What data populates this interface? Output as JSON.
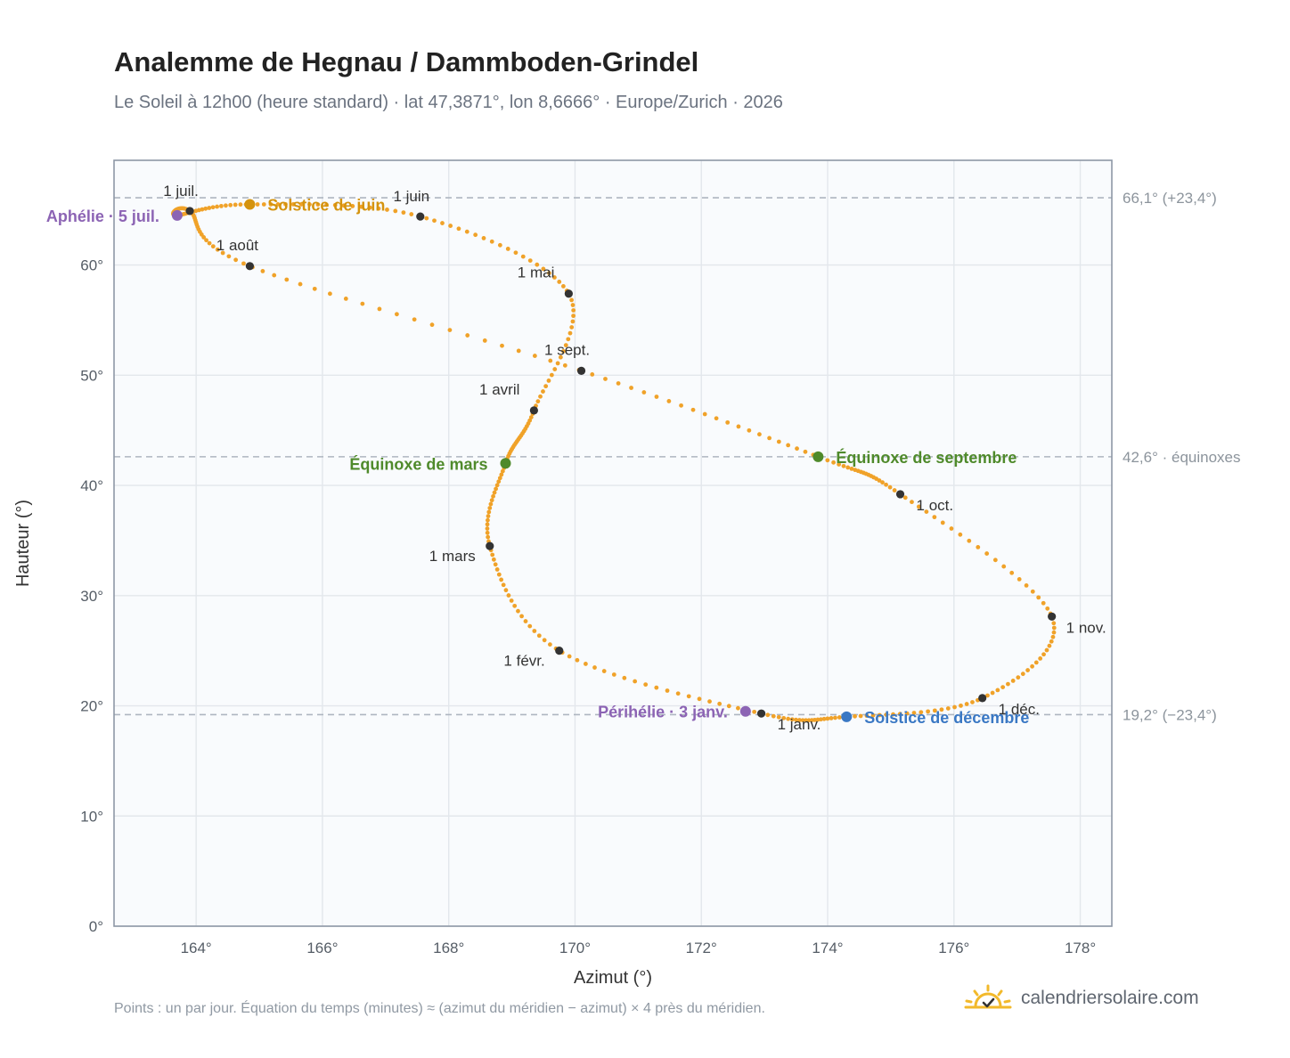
{
  "header": {
    "title": "Analemme de Hegnau / Dammboden-Grindel",
    "subtitle": "Le Soleil à 12h00 (heure standard) · lat 47,3871°, lon 8,6666° · Europe/Zurich · 2026"
  },
  "footer": {
    "note": "Points : un par jour. Équation du temps (minutes) ≈ (azimut du méridien − azimut) × 4 près du méridien.",
    "brand": "calendriersolaire.com"
  },
  "colors": {
    "curve": "#f0a229",
    "month_dot": "#333333",
    "aphelion": "#8c64b4",
    "solstice_june": "#d4930e",
    "equinox": "#4f8a2b",
    "solstice_december": "#3a78c4",
    "grid": "#e3e7ec",
    "plot_bg": "#f9fbfd"
  },
  "chart_data": {
    "type": "scatter",
    "title": "Analemme de Hegnau / Dammboden-Grindel",
    "xlabel": "Azimut (°)",
    "ylabel": "Hauteur (°)",
    "xlim": [
      162.7,
      178.5
    ],
    "ylim": [
      0,
      69.5
    ],
    "x_ticks": [
      {
        "value": 164,
        "label": "164°"
      },
      {
        "value": 166,
        "label": "166°"
      },
      {
        "value": 168,
        "label": "168°"
      },
      {
        "value": 170,
        "label": "170°"
      },
      {
        "value": 172,
        "label": "172°"
      },
      {
        "value": 174,
        "label": "174°"
      },
      {
        "value": 176,
        "label": "176°"
      },
      {
        "value": 178,
        "label": "178°"
      }
    ],
    "y_ticks": [
      {
        "value": 0,
        "label": "0°"
      },
      {
        "value": 10,
        "label": "10°"
      },
      {
        "value": 20,
        "label": "20°"
      },
      {
        "value": 30,
        "label": "30°"
      },
      {
        "value": 40,
        "label": "40°"
      },
      {
        "value": 50,
        "label": "50°"
      },
      {
        "value": 60,
        "label": "60°"
      }
    ],
    "grid": true,
    "reference_lines": [
      {
        "y": 66.1,
        "label": "66,1° (+23,4°)"
      },
      {
        "y": 42.6,
        "label": "42,6° · équinoxes"
      },
      {
        "y": 19.2,
        "label": "19,2° (−23,4°)"
      }
    ],
    "series": [
      {
        "points_per": "day",
        "anchors": [
          [
            172.95,
            19.3
          ],
          [
            169.75,
            25.0
          ],
          [
            168.65,
            34.5
          ],
          [
            168.9,
            42.0
          ],
          [
            169.35,
            46.8
          ],
          [
            169.9,
            57.4
          ],
          [
            167.55,
            64.4
          ],
          [
            164.85,
            65.5
          ],
          [
            163.7,
            64.5
          ],
          [
            163.9,
            64.9
          ],
          [
            164.85,
            59.9
          ],
          [
            170.1,
            50.4
          ],
          [
            173.85,
            42.6
          ],
          [
            175.15,
            39.2
          ],
          [
            177.55,
            28.1
          ],
          [
            176.45,
            20.7
          ],
          [
            174.3,
            19.0
          ],
          [
            172.95,
            19.3
          ]
        ]
      }
    ],
    "month_markers": [
      {
        "label": "1 janv.",
        "x": 172.95,
        "y": 19.3
      },
      {
        "label": "1 févr.",
        "x": 169.75,
        "y": 25.0
      },
      {
        "label": "1 mars",
        "x": 168.65,
        "y": 34.5
      },
      {
        "label": "1 avril",
        "x": 169.35,
        "y": 46.8
      },
      {
        "label": "1 mai",
        "x": 169.9,
        "y": 57.4
      },
      {
        "label": "1 juin",
        "x": 167.55,
        "y": 64.4
      },
      {
        "label": "1 juil.",
        "x": 163.9,
        "y": 64.9
      },
      {
        "label": "1 août",
        "x": 164.85,
        "y": 59.9
      },
      {
        "label": "1 sept.",
        "x": 170.1,
        "y": 50.4
      },
      {
        "label": "1 oct.",
        "x": 175.15,
        "y": 39.2
      },
      {
        "label": "1 nov.",
        "x": 177.55,
        "y": 28.1
      },
      {
        "label": "1 déc.",
        "x": 176.45,
        "y": 20.7
      }
    ],
    "events": [
      {
        "label": "Aphélie · 5 juil.",
        "x": 163.7,
        "y": 64.5,
        "color": "#8c64b4",
        "side": "left"
      },
      {
        "label": "Solstice de juin",
        "x": 164.85,
        "y": 65.5,
        "color": "#d4930e",
        "side": "right"
      },
      {
        "label": "Équinoxe de mars",
        "x": 168.9,
        "y": 42.0,
        "color": "#4f8a2b",
        "side": "left"
      },
      {
        "label": "Équinoxe de septembre",
        "x": 173.85,
        "y": 42.6,
        "color": "#4f8a2b",
        "side": "right"
      },
      {
        "label": "Périhélie · 3 janv.",
        "x": 172.7,
        "y": 19.5,
        "color": "#8c64b4",
        "side": "left"
      },
      {
        "label": "Solstice de décembre",
        "x": 174.3,
        "y": 19.0,
        "color": "#3a78c4",
        "side": "right"
      }
    ]
  }
}
